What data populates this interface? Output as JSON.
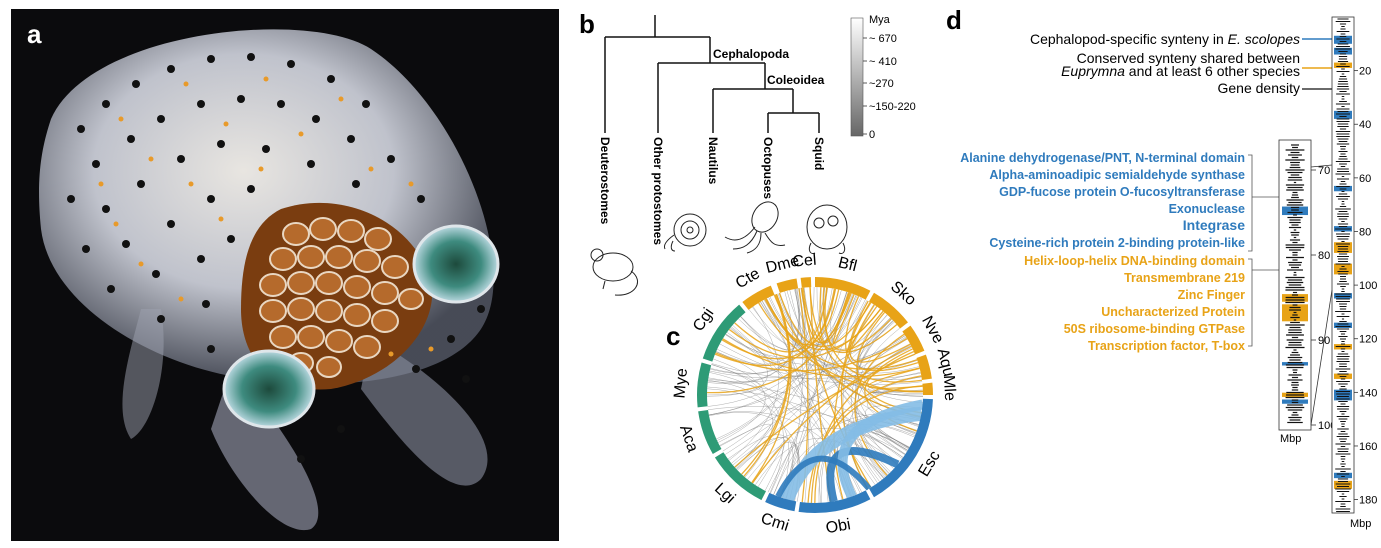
{
  "panels": {
    "a": "a",
    "b": "b",
    "c": "c",
    "d": "d"
  },
  "tree": {
    "clades": [
      "Cephalopoda",
      "Coleoidea"
    ],
    "taxa": [
      "Deuterostomes",
      "Other protostomes",
      "Nautilus",
      "Octopuses",
      "Squid"
    ]
  },
  "scale": {
    "unit": "Mya",
    "ticks": [
      "~ 670",
      "~ 410",
      "~270",
      "~150-220",
      "0"
    ]
  },
  "circos": {
    "species": [
      "Cte",
      "Dme",
      "Cel",
      "Bfl",
      "Sko",
      "Nve",
      "Aqu",
      "Mle",
      "Esc",
      "Obi",
      "Cmi",
      "Lgi",
      "Aca",
      "Mye",
      "Cgi"
    ]
  },
  "colors": {
    "orange": "#e8a317",
    "blue": "#2f7bbd",
    "lightblue": "#84bde6",
    "green": "#2e9b76",
    "grey": "#777777"
  },
  "legend_d": {
    "line1_prefix": "Cephalopod-specific synteny in ",
    "line1_species": "E. scolopes",
    "line2": "Conserved synteny shared between",
    "line3_species": "Euprymna",
    "line3_suffix": " and at least 6 other species",
    "line4": "Gene density"
  },
  "domains_blue": [
    "Alanine dehydrogenase/PNT, N-terminal domain",
    "Alpha-aminoadipic semialdehyde synthase",
    "GDP-fucose protein O-fucosyltransferase",
    "Exonuclease",
    "Integrase",
    "Cysteine-rich protein 2-binding protein-like"
  ],
  "domains_orange": [
    "Helix-loop-helix DNA-binding domain",
    "Transmembrane 219",
    "Zinc Finger",
    "Uncharacterized Protein",
    "50S ribosome-binding GTPase",
    "Transcription factor, T-box"
  ],
  "zoom_axis": {
    "ticks": [
      "70",
      "80",
      "90",
      "100"
    ],
    "unit": "Mbp"
  },
  "chrom_axis": {
    "ticks": [
      "20",
      "40",
      "60",
      "80",
      "100",
      "120",
      "140",
      "160",
      "180"
    ],
    "unit": "Mbp"
  }
}
